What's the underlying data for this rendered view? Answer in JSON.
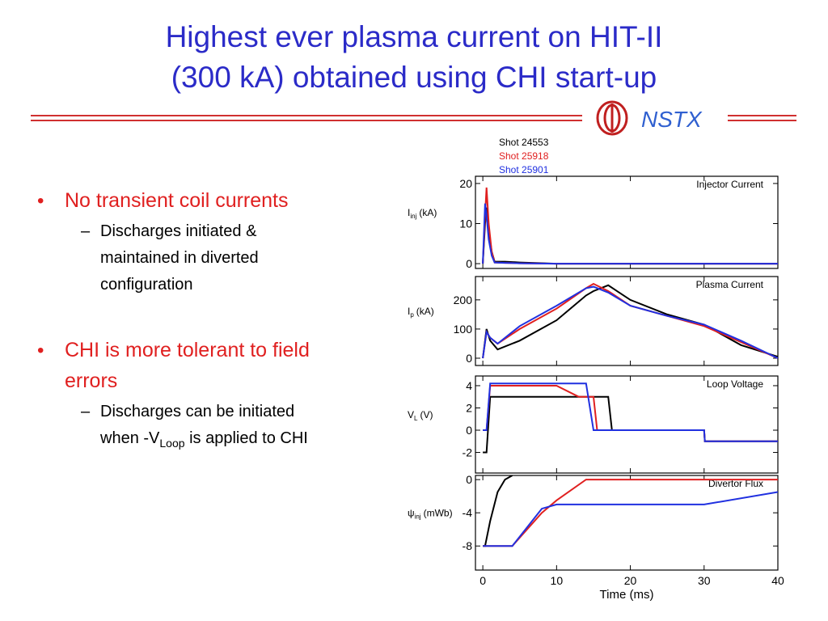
{
  "title": [
    "Highest ever plasma current on HIT-II",
    "(300 kA) obtained using CHI start-up"
  ],
  "logo": "NSTX",
  "bullets": [
    {
      "lines": [
        "No transient coil currents"
      ],
      "subs": [
        {
          "lines": [
            "Discharges initiated &",
            "maintained in diverted",
            "configuration"
          ]
        }
      ]
    },
    {
      "lines": [
        "CHI is more tolerant to field",
        "errors"
      ],
      "subs": [
        {
          "lines": [
            "Discharges can be initiated"
          ],
          "last": {
            "before": "when -V",
            "sub": "Loop",
            "after": " is applied to CHI"
          }
        }
      ]
    }
  ],
  "chart_data": [
    {
      "type": "line",
      "title": "Injector Current",
      "ylabel": "I",
      "ylabel_sub": "inj",
      "ylabel_unit": "(kA)",
      "xlim": [
        -1,
        40
      ],
      "ylim": [
        -1.2,
        21.8
      ],
      "yticks": [
        0,
        10,
        20
      ],
      "x": [
        0,
        0.3,
        0.5,
        0.8,
        1.2,
        1.6,
        3,
        5,
        10,
        40
      ],
      "series": [
        {
          "name": "Shot 24553",
          "color": "#000000",
          "values": [
            0,
            10,
            14,
            8,
            3,
            0.5,
            0.5,
            0.3,
            0,
            0
          ]
        },
        {
          "name": "Shot 25918",
          "color": "#e02020",
          "values": [
            0,
            12,
            19,
            10,
            3,
            0.3,
            0.2,
            0.1,
            0,
            0
          ]
        },
        {
          "name": "Shot 25901",
          "color": "#2030e0",
          "values": [
            0,
            15,
            12,
            6,
            2,
            0.3,
            0.2,
            0.1,
            0,
            0
          ]
        }
      ]
    },
    {
      "type": "line",
      "title": "Plasma Current",
      "ylabel": "I",
      "ylabel_sub": "p",
      "ylabel_unit": "(kA)",
      "xlim": [
        -1,
        40
      ],
      "ylim": [
        -25,
        280
      ],
      "yticks": [
        0,
        100,
        200
      ],
      "x": [
        0,
        0.5,
        1,
        2,
        5,
        10,
        14,
        15,
        17,
        20,
        25,
        30,
        35,
        40
      ],
      "series": [
        {
          "color": "#000000",
          "values": [
            0,
            100,
            60,
            30,
            60,
            130,
            215,
            230,
            250,
            200,
            150,
            115,
            45,
            5
          ]
        },
        {
          "color": "#e02020",
          "values": [
            0,
            90,
            70,
            50,
            100,
            170,
            240,
            255,
            230,
            180,
            145,
            110,
            55,
            0
          ]
        },
        {
          "color": "#2030e0",
          "values": [
            0,
            90,
            70,
            50,
            110,
            180,
            240,
            245,
            225,
            180,
            145,
            115,
            60,
            0
          ]
        }
      ]
    },
    {
      "type": "line",
      "title": "Loop Voltage",
      "ylabel": "V",
      "ylabel_sub": "L",
      "ylabel_unit": "(V)",
      "xlim": [
        -1,
        40
      ],
      "ylim": [
        -3.85,
        4.87
      ],
      "yticks": [
        -2,
        0,
        2,
        4
      ],
      "x": [
        0,
        0.5,
        1,
        5,
        8,
        10,
        13,
        14,
        15,
        15.5,
        16,
        17,
        17.5,
        18,
        20,
        30,
        30.1,
        40
      ],
      "series": [
        {
          "color": "#000000",
          "values": [
            -2,
            -2,
            3,
            3,
            3,
            3,
            3,
            3,
            3,
            3,
            3,
            3,
            0,
            0,
            0,
            0,
            -1,
            -1
          ]
        },
        {
          "color": "#e02020",
          "values": [
            0,
            0,
            4,
            4,
            4,
            4,
            3,
            3,
            3,
            0,
            0,
            0,
            0,
            0,
            0,
            0,
            -1,
            -1
          ]
        },
        {
          "color": "#2030e0",
          "values": [
            0,
            0,
            4.2,
            4.2,
            4.2,
            4.2,
            4.2,
            4.2,
            0,
            0,
            0,
            0,
            0,
            0,
            0,
            0,
            -1,
            -1
          ]
        }
      ]
    },
    {
      "type": "line",
      "title": "Divertor Flux",
      "ylabel": "ψ",
      "ylabel_sub": "inj",
      "ylabel_unit": "(mWb)",
      "xlim": [
        -1,
        40
      ],
      "ylim": [
        -10.9,
        0.5
      ],
      "yticks": [
        -8,
        -4,
        0
      ],
      "xticks": [
        0,
        10,
        20,
        30,
        40
      ],
      "xlabel": "Time (ms)",
      "x": [
        0,
        0.3,
        1,
        2,
        3,
        4,
        8,
        10,
        14,
        30,
        40
      ],
      "series": [
        {
          "color": "#000000",
          "values": [
            -8,
            -8,
            -5,
            -1.5,
            0,
            0.5,
            null,
            null,
            null,
            null,
            null
          ]
        },
        {
          "color": "#e02020",
          "values": [
            -8,
            -8,
            -8,
            -8,
            -8,
            -8,
            -4,
            -2.5,
            0,
            0,
            0
          ]
        },
        {
          "color": "#2030e0",
          "values": [
            -8,
            -8,
            -8,
            -8,
            -8,
            -8,
            -3.5,
            -3,
            -3,
            -3,
            -1.5
          ]
        }
      ]
    }
  ]
}
